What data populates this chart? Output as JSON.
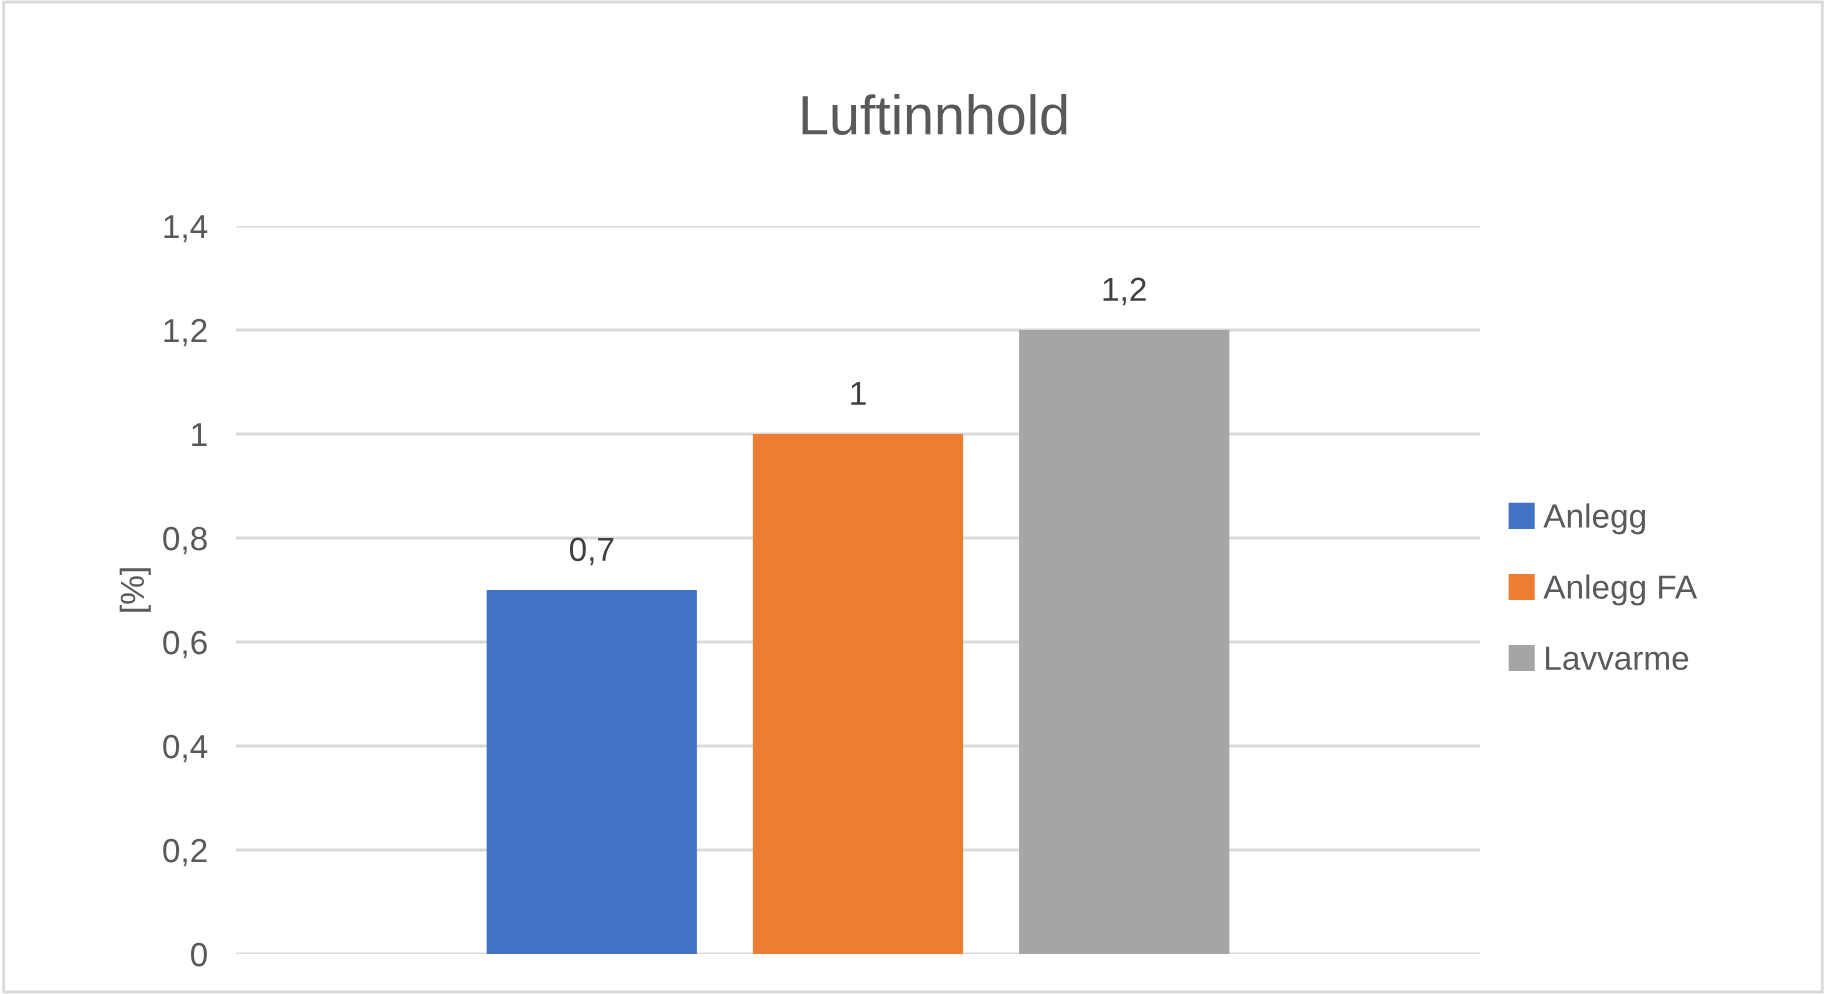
{
  "chart_data": {
    "type": "bar",
    "title": "Luftinnhold",
    "ylabel": "[%]",
    "categories": [
      null
    ],
    "series": [
      {
        "name": "Anlegg",
        "color": "#4472c4",
        "values": [
          0.7
        ],
        "value_labels": [
          "0,7"
        ]
      },
      {
        "name": "Anlegg FA",
        "color": "#ed7d31",
        "values": [
          1
        ],
        "value_labels": [
          "1"
        ]
      },
      {
        "name": "Lavvarme",
        "color": "#a5a5a5",
        "values": [
          1.2
        ],
        "value_labels": [
          "1,2"
        ]
      }
    ],
    "ylim": [
      0,
      1.4
    ],
    "yticks": [
      0,
      {
        "value": 0.2,
        "label": "0,2"
      },
      {
        "value": 0.4,
        "label": "0,4"
      },
      {
        "value": 0.6,
        "label": "0,6"
      },
      {
        "value": 0.8,
        "label": "0,8"
      },
      1,
      {
        "value": 1.2,
        "label": "1,2"
      },
      {
        "value": 1.4,
        "label": "1,4"
      }
    ],
    "grid": "y",
    "legend": "right"
  }
}
